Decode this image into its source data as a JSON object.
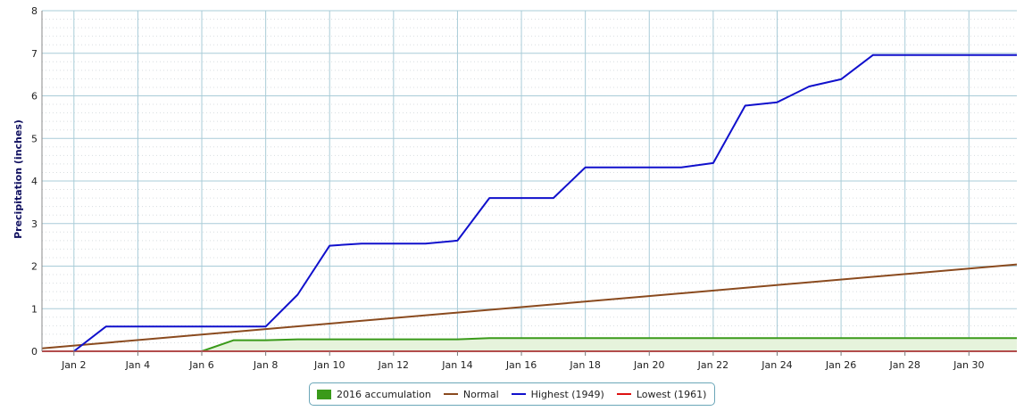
{
  "chart_data": {
    "type": "line",
    "ylabel": "Precipitation (inches)",
    "ylim": [
      0,
      8
    ],
    "yticks": [
      "0",
      "1",
      "2",
      "3",
      "4",
      "5",
      "6",
      "7",
      "8"
    ],
    "xlim": [
      1,
      31.5
    ],
    "xticks": [
      {
        "x": 2,
        "label": "Jan 2"
      },
      {
        "x": 4,
        "label": "Jan 4"
      },
      {
        "x": 6,
        "label": "Jan 6"
      },
      {
        "x": 8,
        "label": "Jan 8"
      },
      {
        "x": 10,
        "label": "Jan 10"
      },
      {
        "x": 12,
        "label": "Jan 12"
      },
      {
        "x": 14,
        "label": "Jan 14"
      },
      {
        "x": 16,
        "label": "Jan 16"
      },
      {
        "x": 18,
        "label": "Jan 18"
      },
      {
        "x": 20,
        "label": "Jan 20"
      },
      {
        "x": 22,
        "label": "Jan 22"
      },
      {
        "x": 24,
        "label": "Jan 24"
      },
      {
        "x": 26,
        "label": "Jan 26"
      },
      {
        "x": 28,
        "label": "Jan 28"
      },
      {
        "x": 30,
        "label": "Jan 30"
      }
    ],
    "grid": true,
    "legend_position": "bottom",
    "series": [
      {
        "name": "2016 accumulation",
        "style": "area",
        "color": "#3a9a1a",
        "fill": "#e6f3dc",
        "x": [
          1,
          6,
          7,
          8,
          9,
          10,
          14,
          15,
          31.5
        ],
        "y": [
          0,
          0,
          0.26,
          0.26,
          0.28,
          0.28,
          0.28,
          0.31,
          0.31
        ]
      },
      {
        "name": "Normal",
        "style": "line",
        "color": "#8a4a1e",
        "x": [
          1,
          31.5
        ],
        "y": [
          0.07,
          2.04
        ]
      },
      {
        "name": "Highest (1949)",
        "style": "line",
        "color": "#1010cc",
        "x": [
          2,
          3,
          8,
          9,
          10,
          11,
          13,
          14,
          15,
          17,
          18,
          21,
          22,
          23,
          24,
          25,
          26,
          27,
          31,
          31.5
        ],
        "y": [
          0,
          0.58,
          0.58,
          1.33,
          2.48,
          2.53,
          2.53,
          2.6,
          3.6,
          3.6,
          4.32,
          4.32,
          4.42,
          5.77,
          5.85,
          6.22,
          6.39,
          6.96,
          6.96,
          6.96
        ]
      },
      {
        "name": "Lowest (1961)",
        "style": "line",
        "color": "#dd1111",
        "x": [
          1,
          31.5
        ],
        "y": [
          0,
          0
        ]
      }
    ]
  }
}
